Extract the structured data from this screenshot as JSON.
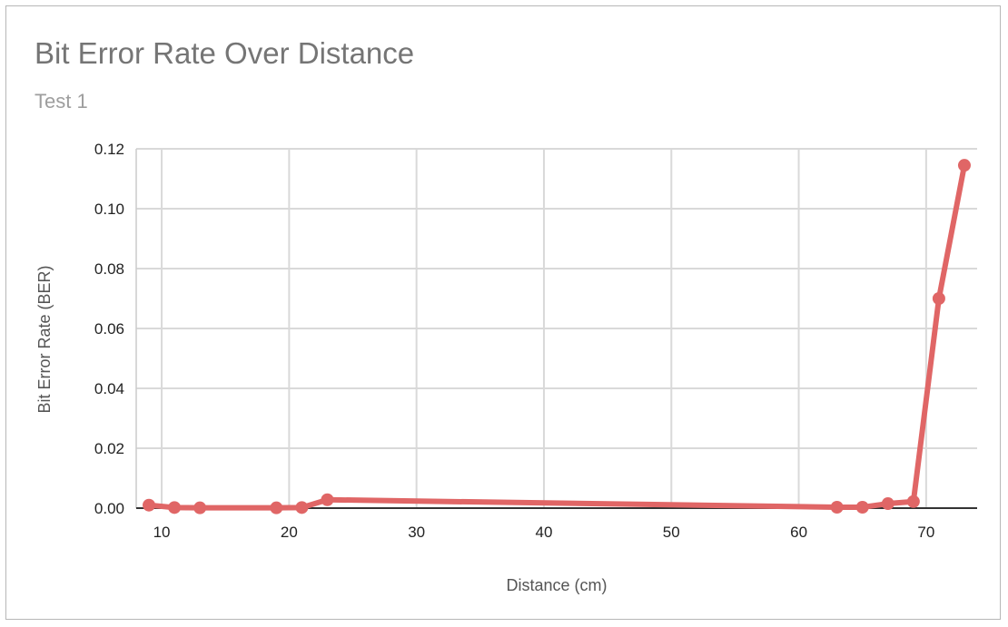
{
  "chart_data": {
    "type": "line",
    "title": "Bit Error Rate Over Distance",
    "subtitle": "Test 1",
    "xlabel": "Distance (cm)",
    "ylabel": "Bit Error Rate (BER)",
    "xlim": [
      8,
      74
    ],
    "ylim": [
      0,
      0.12
    ],
    "x_ticks": [
      10,
      20,
      30,
      40,
      50,
      60,
      70
    ],
    "x_tick_labels": [
      "10",
      "20",
      "30",
      "40",
      "50",
      "60",
      "70"
    ],
    "y_ticks": [
      0,
      0.02,
      0.04,
      0.06,
      0.08,
      0.1,
      0.12
    ],
    "y_tick_labels": [
      "0.00",
      "0.02",
      "0.04",
      "0.06",
      "0.08",
      "0.10",
      "0.12"
    ],
    "grid": true,
    "legend": "none",
    "series": [
      {
        "color": "#e06666",
        "points": [
          {
            "x": 9,
            "y": 0.001
          },
          {
            "x": 11,
            "y": 0.0002
          },
          {
            "x": 13,
            "y": 0.0001
          },
          {
            "x": 19,
            "y": 0.0001
          },
          {
            "x": 21,
            "y": 0.0002
          },
          {
            "x": 23,
            "y": 0.0028
          },
          {
            "x": 63,
            "y": 0.0003
          },
          {
            "x": 65,
            "y": 0.0003
          },
          {
            "x": 67,
            "y": 0.0015
          },
          {
            "x": 69,
            "y": 0.0022
          },
          {
            "x": 71,
            "y": 0.07
          },
          {
            "x": 73,
            "y": 0.1145
          }
        ]
      }
    ]
  },
  "colors": {
    "line": "#e06666",
    "grid": "#d9d9d9",
    "baseline": "#333333",
    "frame": "#b7b7b7"
  }
}
